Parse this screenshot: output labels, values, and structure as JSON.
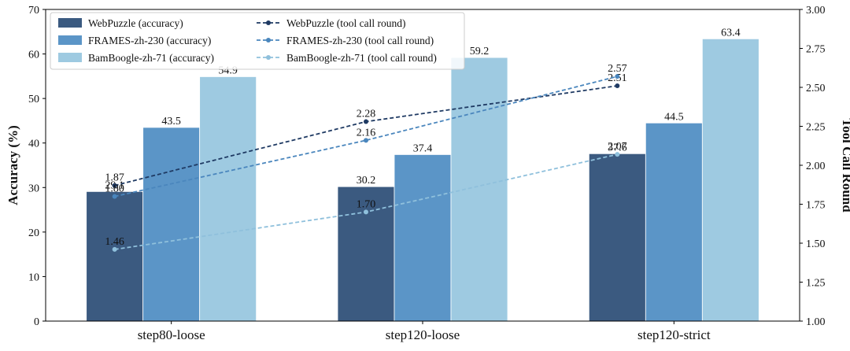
{
  "chart_data": {
    "type": "bar",
    "title": "",
    "xlabel": "",
    "ylabel": "Accuracy (%)",
    "y2label": "Tool Call Round",
    "categories": [
      "step80-loose",
      "step120-loose",
      "step120-strict"
    ],
    "ylim": [
      0,
      70
    ],
    "yticks": [
      0,
      10,
      20,
      30,
      40,
      50,
      60,
      70
    ],
    "y2lim": [
      1.0,
      3.0
    ],
    "y2ticks": [
      "1.00",
      "1.25",
      "1.50",
      "1.75",
      "2.00",
      "2.25",
      "2.50",
      "2.75",
      "3.00"
    ],
    "bar_series": [
      {
        "name": "WebPuzzle (accuracy)",
        "color": "#3b5a80",
        "values": [
          29.1,
          30.2,
          37.6
        ],
        "labels": [
          "29.1",
          "30.2",
          "37.6"
        ]
      },
      {
        "name": "FRAMES-zh-230 (accuracy)",
        "color": "#5b95c7",
        "values": [
          43.5,
          37.4,
          44.5
        ],
        "labels": [
          "43.5",
          "37.4",
          "44.5"
        ]
      },
      {
        "name": "BamBoogle-zh-71 (accuracy)",
        "color": "#9ecae1",
        "values": [
          54.9,
          59.2,
          63.4
        ],
        "labels": [
          "54.9",
          "59.2",
          "63.4"
        ]
      }
    ],
    "line_series": [
      {
        "name": "WebPuzzle (tool call round)",
        "color": "#1f3a63",
        "values": [
          1.87,
          2.28,
          2.51
        ],
        "labels": [
          "1.87",
          "2.28",
          "2.51"
        ]
      },
      {
        "name": "FRAMES-zh-230 (tool call round)",
        "color": "#4a86bd",
        "values": [
          1.8,
          2.16,
          2.57
        ],
        "labels": [
          "1.80",
          "2.16",
          "2.57"
        ]
      },
      {
        "name": "BamBoogle-zh-71 (tool call round)",
        "color": "#8fc0dc",
        "values": [
          1.46,
          1.7,
          2.07
        ],
        "labels": [
          "1.46",
          "1.70",
          "2.07"
        ]
      }
    ],
    "legend": "top-left",
    "grid": false
  }
}
